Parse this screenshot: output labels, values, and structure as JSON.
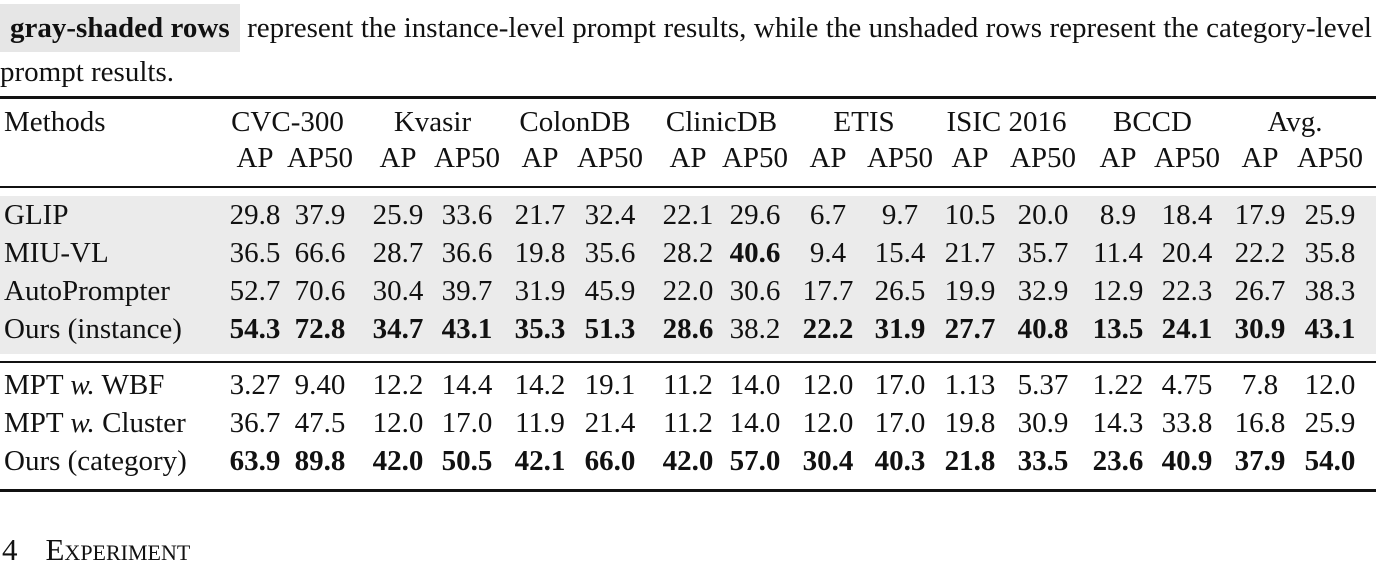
{
  "caption": {
    "highlight": "gray-shaded rows",
    "text": "represent the instance-level prompt results, while the unshaded rows represent the category-level prompt results."
  },
  "table": {
    "method_header": "Methods",
    "datasets": [
      "CVC-300",
      "Kvasir",
      "ColonDB",
      "ClinicDB",
      "ETIS",
      "ISIC 2016",
      "BCCD",
      "Avg."
    ],
    "metrics": [
      "AP",
      "AP50"
    ],
    "groups": [
      {
        "shaded": true,
        "rows": [
          {
            "method": [
              {
                "text": "GLIP",
                "italic": false
              }
            ],
            "values": [
              "29.8",
              "37.9",
              "25.9",
              "33.6",
              "21.7",
              "32.4",
              "22.1",
              "29.6",
              "6.7",
              "9.7",
              "10.5",
              "20.0",
              "8.9",
              "18.4",
              "17.9",
              "25.9"
            ],
            "bold": []
          },
          {
            "method": [
              {
                "text": "MIU-VL",
                "italic": false
              }
            ],
            "values": [
              "36.5",
              "66.6",
              "28.7",
              "36.6",
              "19.8",
              "35.6",
              "28.2",
              "40.6",
              "9.4",
              "15.4",
              "21.7",
              "35.7",
              "11.4",
              "20.4",
              "22.2",
              "35.8"
            ],
            "bold": [
              7
            ]
          },
          {
            "method": [
              {
                "text": "AutoPrompter",
                "italic": false
              }
            ],
            "values": [
              "52.7",
              "70.6",
              "30.4",
              "39.7",
              "31.9",
              "45.9",
              "22.0",
              "30.6",
              "17.7",
              "26.5",
              "19.9",
              "32.9",
              "12.9",
              "22.3",
              "26.7",
              "38.3"
            ],
            "bold": []
          },
          {
            "method": [
              {
                "text": "Ours (instance)",
                "italic": false
              }
            ],
            "values": [
              "54.3",
              "72.8",
              "34.7",
              "43.1",
              "35.3",
              "51.3",
              "28.6",
              "38.2",
              "22.2",
              "31.9",
              "27.7",
              "40.8",
              "13.5",
              "24.1",
              "30.9",
              "43.1"
            ],
            "bold": [
              0,
              1,
              2,
              3,
              4,
              5,
              6,
              8,
              9,
              10,
              11,
              12,
              13,
              14,
              15
            ]
          }
        ]
      },
      {
        "shaded": false,
        "rows": [
          {
            "method": [
              {
                "text": "MPT",
                "italic": false
              },
              {
                "text": "w.",
                "italic": true
              },
              {
                "text": "WBF",
                "italic": false
              }
            ],
            "values": [
              "3.27",
              "9.40",
              "12.2",
              "14.4",
              "14.2",
              "19.1",
              "11.2",
              "14.0",
              "12.0",
              "17.0",
              "1.13",
              "5.37",
              "1.22",
              "4.75",
              "7.8",
              "12.0"
            ],
            "bold": []
          },
          {
            "method": [
              {
                "text": "MPT",
                "italic": false
              },
              {
                "text": "w.",
                "italic": true
              },
              {
                "text": "Cluster",
                "italic": false
              }
            ],
            "values": [
              "36.7",
              "47.5",
              "12.0",
              "17.0",
              "11.9",
              "21.4",
              "11.2",
              "14.0",
              "12.0",
              "17.0",
              "19.8",
              "30.9",
              "14.3",
              "33.8",
              "16.8",
              "25.9"
            ],
            "bold": []
          },
          {
            "method": [
              {
                "text": "Ours (category)",
                "italic": false
              }
            ],
            "values": [
              "63.9",
              "89.8",
              "42.0",
              "50.5",
              "42.1",
              "66.0",
              "42.0",
              "57.0",
              "30.4",
              "40.3",
              "21.8",
              "33.5",
              "23.6",
              "40.9",
              "37.9",
              "54.0"
            ],
            "bold": [
              0,
              1,
              2,
              3,
              4,
              5,
              6,
              7,
              8,
              9,
              10,
              11,
              12,
              13,
              14,
              15
            ]
          }
        ]
      }
    ]
  },
  "section": {
    "number": "4",
    "title": "Experiment"
  }
}
